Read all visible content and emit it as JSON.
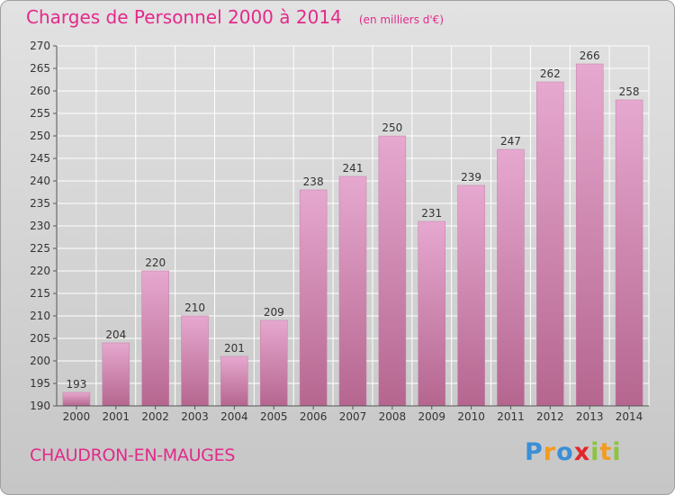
{
  "title": "Charges de Personnel 2000 à 2014",
  "subtitle": "(en milliers d'€)",
  "commune": "CHAUDRON-EN-MAUGES",
  "logo": [
    "P",
    "r",
    "o",
    "x",
    "i",
    "t",
    "i"
  ],
  "colors": {
    "accent": "#e22a8a",
    "bar_light": "#e6a8cf",
    "bar_dark": "#b5668f",
    "grid": "#ffffff"
  },
  "chart_data": {
    "type": "bar",
    "categories": [
      "2000",
      "2001",
      "2002",
      "2003",
      "2004",
      "2005",
      "2006",
      "2007",
      "2008",
      "2009",
      "2010",
      "2011",
      "2012",
      "2013",
      "2014"
    ],
    "values": [
      193,
      204,
      220,
      210,
      201,
      209,
      238,
      241,
      250,
      231,
      239,
      247,
      262,
      266,
      258
    ],
    "title": "Charges de Personnel 2000 à 2014",
    "ylim": [
      190,
      270
    ],
    "yticks": [
      190,
      195,
      200,
      205,
      210,
      215,
      220,
      225,
      230,
      235,
      240,
      245,
      250,
      255,
      260,
      265,
      270
    ],
    "grid": true,
    "data_labels": true
  }
}
